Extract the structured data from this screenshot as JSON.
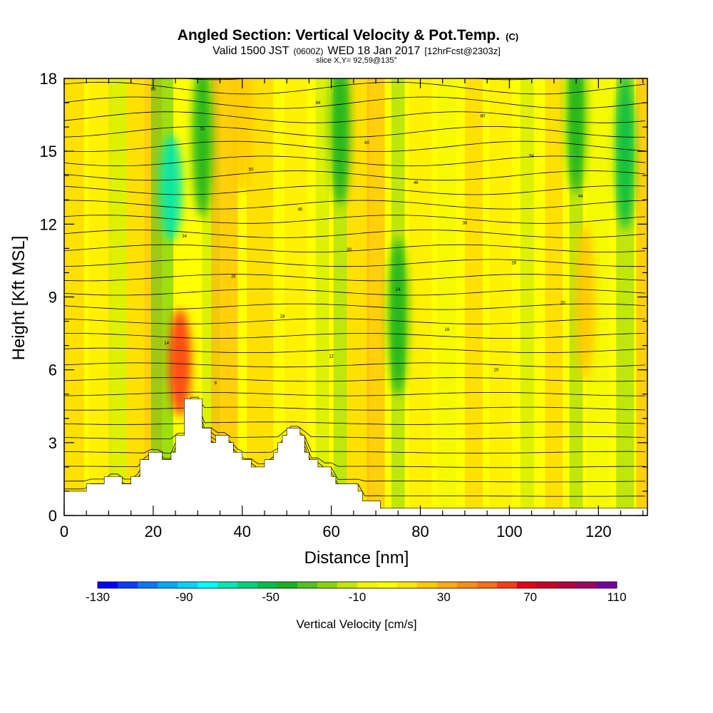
{
  "header": {
    "title": "Angled Section: Vertical Velocity & Pot.Temp.",
    "title_unit": "(C)",
    "valid_prefix": "Valid 1500 JST",
    "valid_utc": "(0600Z)",
    "valid_date": "WED 18 Jan 2017",
    "forecast": "[12hrFcst@2303z]",
    "slice": "slice X,Y= 92,59@135°"
  },
  "chart_data": {
    "type": "heatmap",
    "xlabel": "Distance [nm]",
    "ylabel": "Height [Kft MSL]",
    "xlim": [
      0,
      131
    ],
    "ylim": [
      0,
      18
    ],
    "x_ticks": [
      0,
      20,
      40,
      60,
      80,
      100,
      120
    ],
    "y_ticks": [
      0,
      3,
      6,
      9,
      12,
      15,
      18
    ],
    "grid": false,
    "colorbar": {
      "label": "Vertical Velocity [cm/s]",
      "tick_values": [
        -130,
        -90,
        -50,
        -10,
        30,
        70,
        110
      ],
      "colors": [
        "#0000ff",
        "#0a3cff",
        "#0a78ff",
        "#00a8ff",
        "#00d2ff",
        "#00ffff",
        "#00e8b0",
        "#00d278",
        "#00be46",
        "#14b41e",
        "#50c31e",
        "#8cd214",
        "#c3e600",
        "#eef500",
        "#ffff00",
        "#ffe600",
        "#ffc800",
        "#ffaa14",
        "#ff8c14",
        "#ff6e14",
        "#ff3c14",
        "#e60014",
        "#c80028",
        "#b4003c",
        "#a00064",
        "#7800a0"
      ]
    },
    "theta_contour_labels": [
      "90",
      "84",
      "80",
      "70",
      "60",
      "54",
      "50",
      "46",
      "44",
      "40",
      "38",
      "34",
      "30",
      "28",
      "26",
      "24",
      "20",
      "18",
      "16",
      "14",
      "12",
      "10",
      "8"
    ],
    "velocity_features": [
      {
        "x": 26,
        "y": 6.3,
        "value": 70
      },
      {
        "x": 24,
        "y": 13.5,
        "value": -70
      },
      {
        "x": 40,
        "y": 16.5,
        "value": 30
      },
      {
        "x": 75,
        "y": 8.2,
        "value": -40
      },
      {
        "x": 117,
        "y": 8.8,
        "value": 30
      },
      {
        "x": 126,
        "y": 15,
        "value": -50
      },
      {
        "x": 31,
        "y": 15.5,
        "value": -40
      },
      {
        "x": 62,
        "y": 16,
        "value": -40
      },
      {
        "x": 115,
        "y": 16.5,
        "value": -40
      }
    ],
    "terrain": {
      "x": [
        0,
        5,
        5,
        9,
        9,
        13,
        13,
        15,
        15,
        17,
        17,
        19,
        19,
        22,
        22,
        24,
        24,
        25,
        25,
        27,
        27,
        28,
        28,
        31,
        31,
        33,
        33,
        34,
        34,
        37,
        37,
        38,
        38,
        40,
        40,
        42,
        42,
        45,
        45,
        47,
        47,
        48,
        48,
        49,
        49,
        50,
        50,
        53,
        53,
        54,
        54,
        55,
        55,
        57,
        57,
        60,
        60,
        61,
        61,
        66,
        66,
        67,
        67,
        71,
        71,
        73,
        73,
        131
      ],
      "y": [
        1.0,
        1.0,
        1.3,
        1.3,
        1.6,
        1.6,
        1.3,
        1.3,
        1.6,
        1.6,
        2.3,
        2.3,
        2.6,
        2.6,
        2.3,
        2.3,
        2.6,
        2.6,
        3.3,
        3.3,
        4.8,
        4.8,
        4.8,
        4.8,
        3.6,
        3.6,
        3.0,
        3.0,
        3.3,
        3.3,
        3.0,
        3.0,
        2.6,
        2.6,
        2.3,
        2.3,
        2.0,
        2.0,
        2.3,
        2.3,
        2.6,
        2.6,
        3.0,
        3.0,
        3.3,
        3.3,
        3.6,
        3.6,
        3.3,
        3.3,
        2.6,
        2.6,
        2.3,
        2.3,
        2.0,
        2.0,
        1.6,
        1.6,
        1.3,
        1.3,
        1.0,
        1.0,
        0.6,
        0.6,
        0.3,
        0.3,
        0.3,
        0.3
      ]
    }
  }
}
